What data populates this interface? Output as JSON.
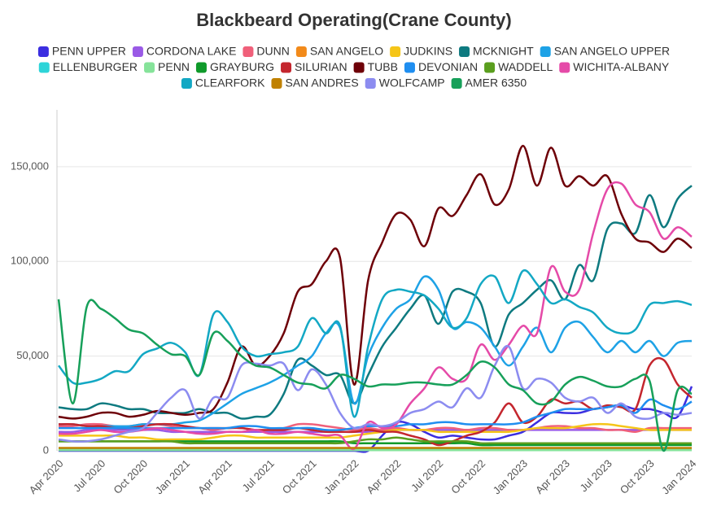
{
  "chart_data": {
    "type": "line",
    "title": "Blackbeard Operating(Crane County)",
    "categories": [
      "Apr 2020",
      null,
      null,
      "Jul 2020",
      null,
      null,
      "Oct 2020",
      null,
      null,
      "Jan 2021",
      null,
      null,
      "Apr 2021",
      null,
      null,
      "Jul 2021",
      null,
      null,
      "Oct 2021",
      null,
      null,
      "Jan 2022",
      null,
      null,
      "Apr 2022",
      null,
      null,
      "Jul 2022",
      null,
      null,
      "Oct 2022",
      null,
      null,
      "Jan 2023",
      null,
      null,
      "Apr 2023",
      null,
      null,
      "Jul 2023",
      null,
      null,
      "Oct 2023",
      null,
      null,
      "Jan 2024"
    ],
    "ylim": [
      0,
      180000
    ],
    "yticks": [
      0,
      {
        "value": 50000,
        "label": "50,000"
      },
      {
        "value": 100000,
        "label": "100,000"
      },
      {
        "value": 150000,
        "label": "150,000"
      }
    ],
    "grid": true,
    "legend": "top",
    "series": [
      {
        "name": "PENN UPPER",
        "color": "#3b2ee0",
        "values": [
          0,
          0,
          0,
          0,
          0,
          0,
          0,
          0,
          0,
          0,
          0,
          0,
          0,
          0,
          0,
          0,
          0,
          0,
          0,
          0,
          0,
          0,
          0,
          8000,
          15000,
          14000,
          10000,
          7000,
          8000,
          7000,
          6000,
          6000,
          8000,
          10000,
          15000,
          20000,
          20000,
          20000,
          22000,
          23000,
          24000,
          22000,
          22000,
          20000,
          18000,
          34000
        ]
      },
      {
        "name": "CORDONA LAKE",
        "color": "#9a5ae6",
        "values": [
          10000,
          10000,
          11000,
          11000,
          11000,
          11000,
          11000,
          11000,
          10000,
          10000,
          10000,
          10000,
          10000,
          10000,
          10000,
          10000,
          10000,
          10000,
          10000,
          10000,
          10000,
          10000,
          10000,
          11000,
          11000,
          11000,
          11000,
          11000,
          11000,
          11000,
          11000,
          11000,
          11000,
          11000,
          11000,
          11000,
          11000,
          11000,
          11000,
          11000,
          11000,
          11000,
          11000,
          11000,
          11000,
          11000
        ]
      },
      {
        "name": "DUNN",
        "color": "#f0607a",
        "values": [
          13000,
          13000,
          14000,
          14000,
          13000,
          13000,
          14000,
          14000,
          13000,
          12000,
          12000,
          11000,
          12000,
          12000,
          11000,
          11000,
          12000,
          14000,
          14000,
          13000,
          12000,
          11000,
          12000,
          11000,
          12000,
          11000,
          11000,
          12000,
          12000,
          11000,
          12000,
          12000,
          11000,
          11000,
          12000,
          13000,
          13000,
          12000,
          12000,
          11000,
          11000,
          10000,
          12000,
          12000,
          12000,
          12000
        ]
      },
      {
        "name": "SAN ANGELO",
        "color": "#f28a1a",
        "values": [
          1000,
          1000,
          1000,
          1000,
          1000,
          1000,
          1000,
          1000,
          1000,
          1000,
          1000,
          1000,
          1000,
          1000,
          1000,
          1000,
          1000,
          1000,
          1000,
          1000,
          1000,
          1000,
          1000,
          1000,
          1000,
          1000,
          1000,
          1000,
          1000,
          1000,
          1000,
          1000,
          1000,
          1000,
          1000,
          1000,
          1000,
          1000,
          1000,
          1000,
          1000,
          1000,
          1000,
          1000,
          1000,
          1000
        ]
      },
      {
        "name": "JUDKINS",
        "color": "#f5c518",
        "values": [
          8000,
          8000,
          8000,
          8000,
          8000,
          7000,
          7000,
          6000,
          6000,
          6000,
          6000,
          7000,
          8000,
          8000,
          7000,
          7000,
          7000,
          7000,
          7000,
          7000,
          7000,
          8000,
          9000,
          10000,
          11000,
          11000,
          11000,
          10000,
          10000,
          10000,
          10000,
          10000,
          10000,
          11000,
          12000,
          12000,
          12000,
          13000,
          14000,
          14000,
          13000,
          12000,
          11000,
          11000,
          11000,
          11000
        ]
      },
      {
        "name": "MCKNIGHT",
        "color": "#0e7a80",
        "values": [
          23000,
          22000,
          22000,
          25000,
          24000,
          22000,
          22000,
          20000,
          20000,
          20000,
          22000,
          20000,
          20000,
          17000,
          18000,
          19000,
          30000,
          48000,
          45000,
          40000,
          40000,
          25000,
          40000,
          55000,
          65000,
          75000,
          82000,
          67000,
          84000,
          84000,
          78000,
          55000,
          72000,
          78000,
          85000,
          90000,
          80000,
          98000,
          90000,
          117000,
          120000,
          115000,
          135000,
          118000,
          133000,
          140000
        ]
      },
      {
        "name": "SAN ANGELO UPPER",
        "color": "#1ea2e6",
        "values": [
          14000,
          14000,
          13000,
          13000,
          13000,
          13000,
          14000,
          14000,
          14000,
          15000,
          16000,
          20000,
          25000,
          30000,
          33000,
          36000,
          40000,
          45000,
          50000,
          62000,
          65000,
          25000,
          50000,
          65000,
          75000,
          80000,
          92000,
          85000,
          65000,
          68000,
          65000,
          55000,
          45000,
          55000,
          65000,
          52000,
          65000,
          68000,
          60000,
          52000,
          58000,
          52000,
          58000,
          50000,
          57000,
          58000
        ]
      },
      {
        "name": "ELLENBURGER",
        "color": "#2dd4d8",
        "values": [
          500,
          500,
          500,
          500,
          500,
          500,
          500,
          500,
          500,
          500,
          500,
          500,
          500,
          500,
          500,
          500,
          500,
          500,
          500,
          500,
          500,
          500,
          500,
          500,
          500,
          500,
          500,
          500,
          500,
          500,
          500,
          500,
          500,
          500,
          500,
          500,
          500,
          500,
          500,
          500,
          500,
          500,
          500,
          500,
          500,
          500
        ]
      },
      {
        "name": "PENN",
        "color": "#86e39a",
        "values": [
          300,
          300,
          300,
          300,
          300,
          300,
          300,
          300,
          300,
          300,
          300,
          300,
          300,
          300,
          300,
          300,
          300,
          300,
          300,
          300,
          300,
          300,
          300,
          300,
          300,
          300,
          300,
          300,
          300,
          300,
          300,
          300,
          300,
          300,
          300,
          300,
          300,
          300,
          300,
          300,
          300,
          300,
          300,
          300,
          300,
          300
        ]
      },
      {
        "name": "GRAYBURG",
        "color": "#0f9a2a",
        "values": [
          5000,
          5000,
          5000,
          5000,
          5000,
          5000,
          5000,
          5000,
          5000,
          5000,
          5000,
          5000,
          5000,
          5000,
          5000,
          5000,
          5000,
          5000,
          5000,
          5000,
          5000,
          4000,
          4000,
          4000,
          4000,
          4000,
          4000,
          4000,
          4000,
          4000,
          3000,
          3000,
          3000,
          3000,
          3000,
          3000,
          3000,
          3000,
          3000,
          3000,
          3000,
          3000,
          3000,
          3000,
          3000,
          3000
        ]
      },
      {
        "name": "SILURIAN",
        "color": "#c4262e",
        "values": [
          14000,
          14000,
          13000,
          13000,
          12000,
          12000,
          13000,
          14000,
          14000,
          13000,
          12000,
          12000,
          12000,
          12000,
          11000,
          11000,
          11000,
          12000,
          11000,
          10000,
          10000,
          10000,
          11000,
          10000,
          10000,
          8000,
          6000,
          3000,
          5000,
          8000,
          10000,
          15000,
          25000,
          15000,
          18000,
          27000,
          25000,
          26000,
          22000,
          24000,
          23000,
          22000,
          45000,
          48000,
          35000,
          28000
        ]
      },
      {
        "name": "TUBB",
        "color": "#6e0008",
        "values": [
          18000,
          17000,
          18000,
          20000,
          20000,
          18000,
          19000,
          21000,
          20000,
          19000,
          20000,
          22000,
          36000,
          55000,
          45000,
          50000,
          62000,
          84000,
          88000,
          100000,
          102000,
          35000,
          90000,
          110000,
          125000,
          122000,
          108000,
          128000,
          124000,
          135000,
          146000,
          130000,
          138000,
          161000,
          140000,
          160000,
          140000,
          145000,
          140000,
          145000,
          125000,
          112000,
          110000,
          105000,
          112000,
          107000
        ]
      },
      {
        "name": "DEVONIAN",
        "color": "#1f8ef0",
        "values": [
          12000,
          12000,
          12000,
          12000,
          12000,
          12000,
          12000,
          12000,
          12000,
          12000,
          12000,
          12000,
          12000,
          13000,
          13000,
          12000,
          12000,
          12000,
          12000,
          11000,
          11000,
          12000,
          13000,
          13000,
          13000,
          14000,
          14000,
          15000,
          15000,
          14000,
          14000,
          14000,
          14000,
          15000,
          18000,
          20000,
          22000,
          22000,
          22000,
          23000,
          24000,
          20000,
          27000,
          24000,
          22000,
          26000
        ]
      },
      {
        "name": "WADDELL",
        "color": "#5a9e1e",
        "values": [
          5000,
          5000,
          5000,
          5000,
          5000,
          5000,
          5000,
          5000,
          5000,
          4000,
          4000,
          4000,
          4000,
          4000,
          4000,
          4000,
          4000,
          4000,
          4000,
          4000,
          4000,
          5000,
          6000,
          6000,
          7000,
          6000,
          5000,
          5000,
          5000,
          5000,
          4000,
          4000,
          4000,
          4000,
          4000,
          4000,
          4000,
          4000,
          4000,
          4000,
          4000,
          4000,
          4000,
          4000,
          4000,
          4000
        ]
      },
      {
        "name": "WICHITA-ALBANY",
        "color": "#e54aa8",
        "values": [
          9000,
          9000,
          10000,
          11000,
          10000,
          10000,
          11000,
          12000,
          11000,
          10000,
          9000,
          9000,
          10000,
          10000,
          11000,
          9000,
          9000,
          10000,
          9000,
          8000,
          8000,
          1000,
          15000,
          12000,
          14000,
          25000,
          33000,
          44000,
          38000,
          38000,
          56000,
          48000,
          56000,
          66000,
          62000,
          97000,
          84000,
          85000,
          115000,
          138000,
          141000,
          130000,
          126000,
          112000,
          118000,
          113000
        ]
      },
      {
        "name": "CLEARFORK",
        "color": "#13a8c4",
        "values": [
          45000,
          36000,
          36000,
          38000,
          42000,
          42000,
          51000,
          54000,
          57000,
          52000,
          40000,
          72000,
          68000,
          55000,
          50000,
          51000,
          52000,
          55000,
          70000,
          62000,
          66000,
          18000,
          55000,
          80000,
          85000,
          84000,
          82000,
          75000,
          65000,
          70000,
          88000,
          92000,
          78000,
          95000,
          88000,
          78000,
          80000,
          76000,
          73000,
          65000,
          62000,
          64000,
          77000,
          78000,
          79000,
          77000
        ]
      },
      {
        "name": "SAN ANDRES",
        "color": "#c08100",
        "values": [
          1500,
          1500,
          1500,
          1500,
          1500,
          1500,
          1500,
          1500,
          1500,
          1500,
          1500,
          1500,
          1500,
          1500,
          1500,
          1500,
          1500,
          1500,
          1500,
          1500,
          1500,
          1500,
          1500,
          1500,
          1500,
          1500,
          1500,
          1500,
          1500,
          1500,
          1500,
          1500,
          1500,
          1500,
          1500,
          1500,
          1500,
          1500,
          1500,
          1500,
          1500,
          1500,
          1500,
          1500,
          1500,
          1500
        ]
      },
      {
        "name": "WOLFCAMP",
        "color": "#8c8cf0",
        "values": [
          6000,
          5000,
          5000,
          6000,
          8000,
          10000,
          12000,
          20000,
          28000,
          32000,
          17000,
          28000,
          28000,
          45000,
          46000,
          45000,
          46000,
          32000,
          43000,
          35000,
          20000,
          12000,
          14000,
          13000,
          15000,
          20000,
          22000,
          26000,
          23000,
          33000,
          28000,
          45000,
          55000,
          33000,
          38000,
          36000,
          28000,
          26000,
          28000,
          20000,
          25000,
          18000,
          17000,
          20000,
          19000,
          20000
        ]
      },
      {
        "name": "AMER 6350",
        "color": "#17a05a",
        "values": [
          80000,
          25000,
          76000,
          75000,
          70000,
          64000,
          62000,
          56000,
          51000,
          50000,
          40000,
          62000,
          58000,
          50000,
          45000,
          44000,
          40000,
          36000,
          35000,
          33000,
          40000,
          38000,
          34000,
          35000,
          35000,
          36000,
          36000,
          35000,
          35000,
          40000,
          47000,
          44000,
          35000,
          32000,
          25000,
          26000,
          35000,
          39000,
          37000,
          34000,
          34000,
          38000,
          37000,
          0,
          32000,
          30000
        ]
      }
    ]
  }
}
